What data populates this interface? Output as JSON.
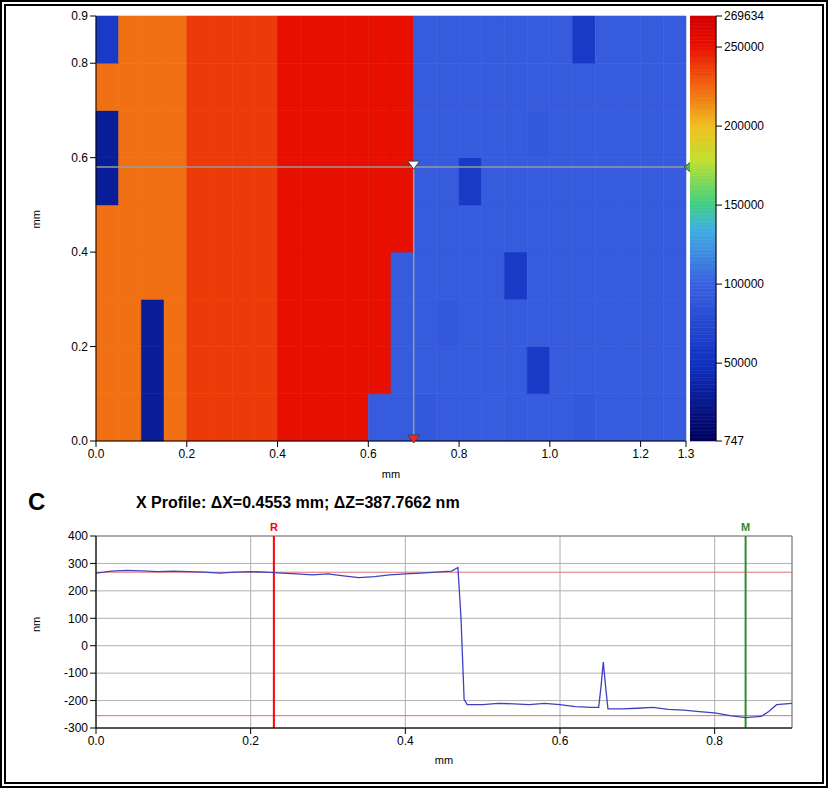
{
  "chart_data": [
    {
      "type": "heatmap",
      "x_label": "mm",
      "y_label": "mm",
      "xlim": [
        0,
        1.3
      ],
      "ylim": [
        0,
        0.9
      ],
      "xticks": [
        {
          "value": 0,
          "label": "0.0"
        },
        0.2,
        0.4,
        0.6,
        0.8,
        {
          "value": 1,
          "label": "1.0"
        },
        1.2,
        1.3
      ],
      "yticks": [
        {
          "value": 0,
          "label": "0.0"
        },
        0.2,
        0.4,
        0.6,
        0.8,
        0.9
      ],
      "x_edges": [
        0,
        0.05,
        0.1,
        0.15,
        0.2,
        0.25,
        0.3,
        0.35,
        0.4,
        0.45,
        0.5,
        0.55,
        0.6,
        0.65,
        0.7,
        0.75,
        0.8,
        0.85,
        0.9,
        0.95,
        1,
        1.05,
        1.1,
        1.15,
        1.2,
        1.25,
        1.3
      ],
      "y_edges": [
        0,
        0.1,
        0.2,
        0.3,
        0.4,
        0.5,
        0.6,
        0.7,
        0.8,
        0.9
      ],
      "z": [
        [
          222000,
          222000,
          30000,
          222000,
          238000,
          238000,
          238000,
          238000,
          252000,
          252000,
          252000,
          252000,
          95000,
          95000,
          92000,
          95000,
          95000,
          98000,
          95000,
          95000,
          95000,
          92000,
          95000,
          95000,
          95000,
          95000
        ],
        [
          222000,
          222000,
          30000,
          222000,
          238000,
          238000,
          238000,
          238000,
          252000,
          252000,
          252000,
          252000,
          252000,
          95000,
          95000,
          95000,
          95000,
          95000,
          95000,
          60000,
          95000,
          95000,
          95000,
          95000,
          95000,
          95000
        ],
        [
          222000,
          222000,
          30000,
          222000,
          238000,
          238000,
          238000,
          238000,
          252000,
          252000,
          252000,
          252000,
          252000,
          95000,
          95000,
          92000,
          95000,
          95000,
          95000,
          95000,
          95000,
          95000,
          95000,
          95000,
          95000,
          95000
        ],
        [
          222000,
          222000,
          222000,
          222000,
          238000,
          238000,
          238000,
          238000,
          252000,
          252000,
          252000,
          252000,
          252000,
          95000,
          95000,
          95000,
          95000,
          95000,
          60000,
          95000,
          95000,
          95000,
          95000,
          95000,
          95000,
          95000
        ],
        [
          222000,
          222000,
          222000,
          222000,
          238000,
          238000,
          238000,
          238000,
          252000,
          252000,
          252000,
          252000,
          252000,
          252000,
          95000,
          95000,
          95000,
          95000,
          95000,
          95000,
          95000,
          95000,
          95000,
          95000,
          95000,
          95000
        ],
        [
          30000,
          222000,
          222000,
          222000,
          238000,
          238000,
          238000,
          238000,
          252000,
          252000,
          252000,
          252000,
          252000,
          252000,
          95000,
          95000,
          60000,
          95000,
          95000,
          95000,
          95000,
          95000,
          95000,
          95000,
          95000,
          95000
        ],
        [
          30000,
          222000,
          222000,
          222000,
          238000,
          238000,
          238000,
          238000,
          252000,
          252000,
          252000,
          252000,
          252000,
          252000,
          95000,
          95000,
          95000,
          95000,
          95000,
          92000,
          95000,
          95000,
          95000,
          95000,
          95000,
          95000
        ],
        [
          222000,
          222000,
          222000,
          222000,
          238000,
          238000,
          238000,
          238000,
          252000,
          252000,
          252000,
          252000,
          252000,
          252000,
          95000,
          95000,
          95000,
          95000,
          95000,
          95000,
          95000,
          95000,
          95000,
          95000,
          95000,
          95000
        ],
        [
          60000,
          222000,
          222000,
          222000,
          238000,
          238000,
          238000,
          238000,
          252000,
          252000,
          252000,
          252000,
          252000,
          252000,
          95000,
          95000,
          95000,
          95000,
          95000,
          95000,
          95000,
          60000,
          95000,
          95000,
          95000,
          95000
        ]
      ],
      "colorbar": {
        "range": [
          747,
          269634
        ],
        "ticks": [
          747,
          50000,
          100000,
          150000,
          200000,
          250000,
          269634
        ]
      },
      "cursor": {
        "x": 0.7,
        "y": 0.58
      }
    },
    {
      "type": "line",
      "panel_label": "C",
      "title": "X Profile: ΔX=0.4553 mm; ΔZ=387.7662 nm",
      "x_label": "mm",
      "y_label": "nm",
      "color": "#4040c0",
      "x": [
        0,
        0.01,
        0.02,
        0.04,
        0.06,
        0.08,
        0.1,
        0.12,
        0.14,
        0.16,
        0.18,
        0.2,
        0.22,
        0.24,
        0.26,
        0.28,
        0.3,
        0.32,
        0.34,
        0.36,
        0.38,
        0.4,
        0.42,
        0.44,
        0.46,
        0.468,
        0.472,
        0.476,
        0.48,
        0.5,
        0.52,
        0.54,
        0.56,
        0.58,
        0.6,
        0.62,
        0.64,
        0.65,
        0.653,
        0.656,
        0.659,
        0.662,
        0.68,
        0.7,
        0.72,
        0.74,
        0.76,
        0.78,
        0.8,
        0.82,
        0.84,
        0.86,
        0.87,
        0.88,
        0.9
      ],
      "values": [
        265,
        268,
        272,
        275,
        273,
        270,
        272,
        270,
        268,
        265,
        268,
        270,
        268,
        265,
        262,
        258,
        262,
        255,
        248,
        252,
        258,
        262,
        265,
        268,
        272,
        285,
        100,
        -195,
        -215,
        -215,
        -210,
        -212,
        -215,
        -210,
        -215,
        -222,
        -225,
        -225,
        -150,
        -60,
        -150,
        -230,
        -230,
        -228,
        -225,
        -232,
        -235,
        -240,
        -245,
        -255,
        -262,
        -258,
        -240,
        -215,
        -210
      ],
      "xlim": [
        0,
        0.9
      ],
      "ylim": [
        -300,
        400
      ],
      "xticks": [
        {
          "value": 0,
          "label": "0.0"
        },
        0.2,
        0.4,
        0.6,
        0.8
      ],
      "yticks": [
        -300,
        -200,
        -100,
        0,
        100,
        200,
        300,
        400
      ],
      "grid": true,
      "cursors": [
        {
          "label": "R",
          "x": 0.23,
          "y": 268,
          "color": "#ff0000"
        },
        {
          "label": "M",
          "x": 0.84,
          "y": -255,
          "color": "#2e8b2e"
        }
      ]
    }
  ]
}
